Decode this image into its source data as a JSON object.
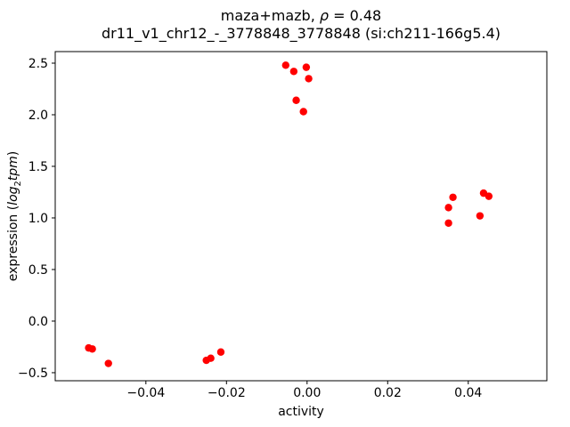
{
  "figure": {
    "title": {
      "prefix": "maza+mazb, ",
      "rho": "ρ",
      "suffix": " = 0.48"
    },
    "subtitle": "dr11_v1_chr12_-_3778848_3778848 (si:ch211-166g5.4)",
    "xlabel": "activity",
    "ylabel": {
      "prefix": "expression (",
      "log": "log",
      "sub": "2",
      "var": "tpm",
      "suffix": ")"
    }
  },
  "chart_data": {
    "type": "scatter",
    "title": "maza+mazb, ρ = 0.48\ndr11_v1_chr12_-_3778848_3778848 (si:ch211-166g5.4)",
    "xlabel": "activity",
    "ylabel": "expression (log2 tpm)",
    "legend": null,
    "grid": false,
    "marker_color": "#ff0000",
    "xlim": [
      -0.0625,
      0.0595
    ],
    "ylim": [
      -0.578,
      2.612
    ],
    "xticks": [
      -0.04,
      -0.02,
      0.0,
      0.02,
      0.04
    ],
    "yticks": [
      -0.5,
      0.0,
      0.5,
      1.0,
      1.5,
      2.0,
      2.5
    ],
    "points": [
      [
        -0.0542,
        -0.26
      ],
      [
        -0.0533,
        -0.27
      ],
      [
        -0.0493,
        -0.41
      ],
      [
        -0.025,
        -0.38
      ],
      [
        -0.0239,
        -0.36
      ],
      [
        -0.0214,
        -0.3
      ],
      [
        -0.0053,
        2.48
      ],
      [
        -0.0033,
        2.42
      ],
      [
        -0.0027,
        2.14
      ],
      [
        -0.0009,
        2.03
      ],
      [
        -0.0002,
        2.46
      ],
      [
        0.0004,
        2.35
      ],
      [
        0.0351,
        1.1
      ],
      [
        0.0362,
        1.2
      ],
      [
        0.0351,
        0.95
      ],
      [
        0.0429,
        1.02
      ],
      [
        0.0438,
        1.24
      ],
      [
        0.0451,
        1.21
      ]
    ]
  }
}
